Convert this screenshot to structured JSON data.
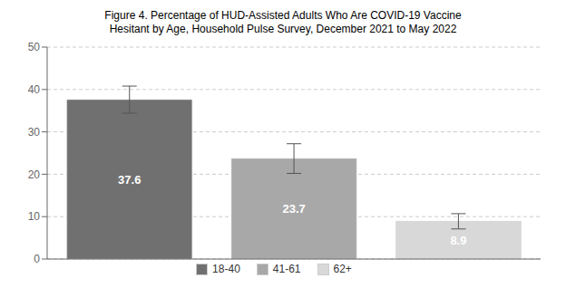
{
  "chart_data": {
    "type": "bar",
    "title": "Figure 4. Percentage of HUD-Assisted Adults Who Are COVID-19 Vaccine\nHesitant by Age, Household Pulse Survey, December 2021 to May 2022",
    "categories": [
      "18-40",
      "41-61",
      "62+"
    ],
    "values": [
      37.6,
      23.7,
      8.9
    ],
    "errors_up": [
      3.2,
      3.5,
      1.8
    ],
    "errors_down": [
      3.2,
      3.5,
      1.8
    ],
    "colors": [
      "#707070",
      "#a8a8a8",
      "#d8d8d8"
    ],
    "ylim": [
      0,
      50
    ],
    "yticks": [
      0,
      10,
      20,
      30,
      40,
      50
    ],
    "grid": true,
    "legend": "bottom",
    "data_labels": true,
    "tick_labels": "y"
  }
}
